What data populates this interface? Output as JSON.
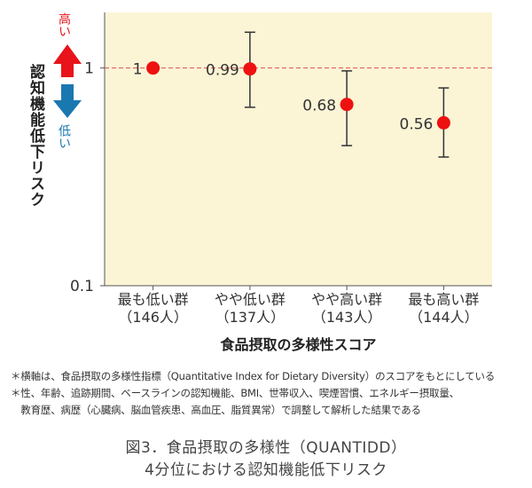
{
  "chart_data": {
    "type": "scatter",
    "errorbars": true,
    "y_scale": "log",
    "ylim": [
      0.1,
      1.8
    ],
    "yticks": [
      {
        "value": 0.1,
        "label": "0.1"
      },
      {
        "value": 1,
        "label": "1"
      }
    ],
    "reference_line": {
      "value": 1,
      "style": "dashed",
      "color": "#e05050"
    },
    "ylabel": "認知機能低下リスク",
    "y_high_label": "高い",
    "y_low_label": "低い",
    "xlabel": "食品摂取の多様性スコア",
    "plot_background": "#fbf5d6",
    "point_color": "#ee1111",
    "arrow_up_color": "#e8131b",
    "arrow_down_color": "#1a78b0",
    "categories": [
      {
        "line1": "最も低い群",
        "line2": "（146人）"
      },
      {
        "line1": "やや低い群",
        "line2": "（137人）"
      },
      {
        "line1": "やや高い群",
        "line2": "（143人）"
      },
      {
        "line1": "最も高い群",
        "line2": "（144人）"
      }
    ],
    "points": [
      {
        "value": 1,
        "label": "1",
        "ci_low": null,
        "ci_high": null
      },
      {
        "value": 0.99,
        "label": "0.99",
        "ci_low": 0.66,
        "ci_high": 1.46
      },
      {
        "value": 0.68,
        "label": "0.68",
        "ci_low": 0.44,
        "ci_high": 0.97
      },
      {
        "value": 0.56,
        "label": "0.56",
        "ci_low": 0.39,
        "ci_high": 0.81
      }
    ]
  },
  "notes": [
    "＊横軸は、食品摂取の多様性指標（Quantitative Index for Dietary Diversity）のスコアをもとにしている",
    "＊性、年齢、追跡期間、ベースラインの認知機能、BMI、世帯収入、喫煙習慣、エネルギー摂取量、",
    "　教育歴、病歴（心臓病、脳血管疾患、高血圧、脂質異常）で調整して解析した結果である"
  ],
  "caption": {
    "line1": "図3．食品摂取の多様性（QUANTIDD）",
    "line2": "4分位における認知機能低下リスク"
  }
}
